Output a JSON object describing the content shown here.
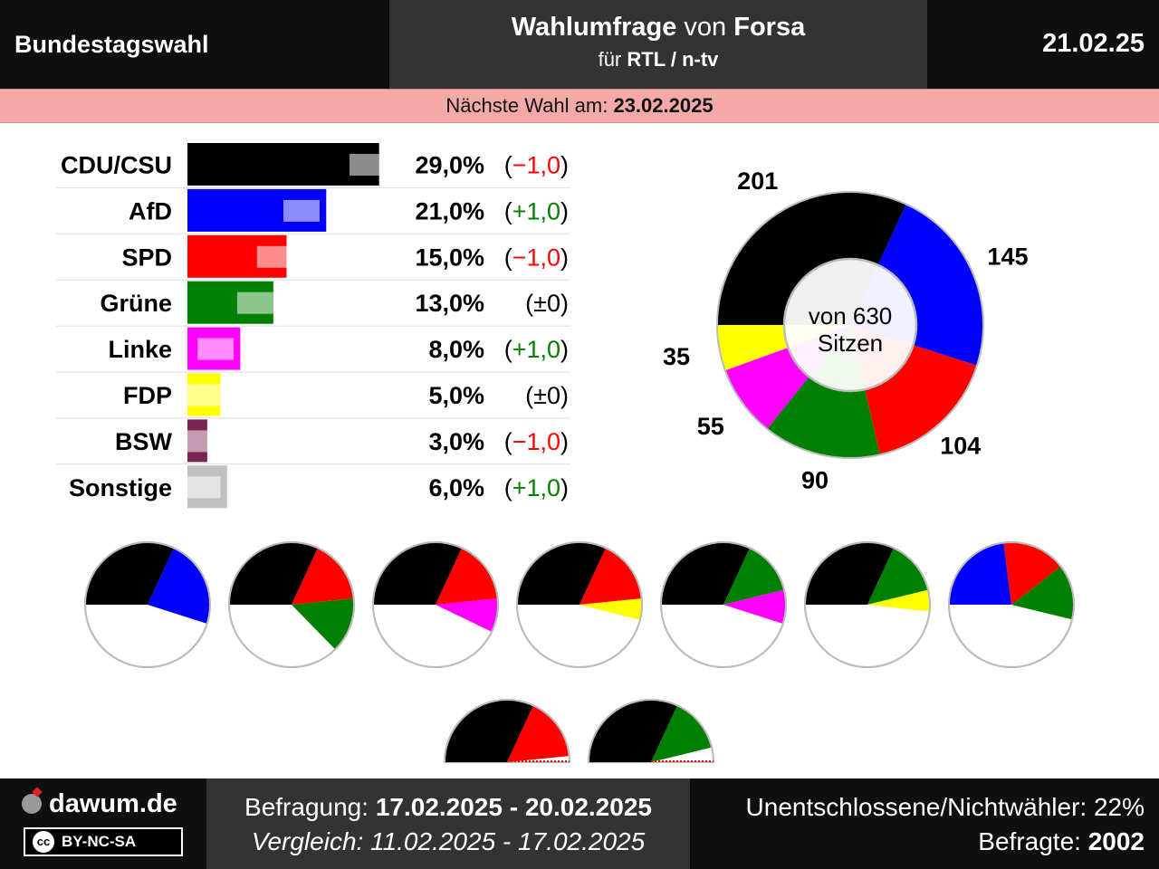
{
  "header": {
    "left": "Bundestagswahl",
    "title_main": "Wahlumfrage",
    "title_mid": " von ",
    "title_org": "Forsa",
    "sub_pre": "für ",
    "sub_client": "RTL / n-tv",
    "date": "21.02.25"
  },
  "next_election": {
    "label": "Nächste Wahl am: ",
    "date": "23.02.2025"
  },
  "chart_data": {
    "type": "bar",
    "categories": [
      "CDU/CSU",
      "AfD",
      "SPD",
      "Grüne",
      "Linke",
      "FDP",
      "BSW",
      "Sonstige"
    ],
    "values": [
      29.0,
      21.0,
      15.0,
      13.0,
      8.0,
      5.0,
      3.0,
      6.0
    ],
    "previous_values": [
      30.0,
      20.0,
      16.0,
      13.0,
      7.0,
      5.0,
      4.0,
      5.0
    ],
    "value_labels": [
      "29,0%",
      "21,0%",
      "15,0%",
      "13,0%",
      "8,0%",
      "5,0%",
      "3,0%",
      "6,0%"
    ],
    "change_labels": [
      "−1,0",
      "+1,0",
      "−1,0",
      "±0",
      "+1,0",
      "±0",
      "−1,0",
      "+1,0"
    ],
    "colors": [
      "#000000",
      "#0000ff",
      "#ff0000",
      "#008000",
      "#ff00ff",
      "#ffff00",
      "#7b2450",
      "#c0c0c0"
    ],
    "change_colors": {
      "down": "#ff0000",
      "up": "#008000",
      "zero": "#000000"
    },
    "seats": {
      "type": "pie",
      "parties": [
        "CDU/CSU",
        "AfD",
        "SPD",
        "Grüne",
        "Linke",
        "FDP"
      ],
      "values": [
        201,
        145,
        104,
        90,
        55,
        35
      ],
      "colors": [
        "#000000",
        "#0000ff",
        "#ff0000",
        "#008000",
        "#ff00ff",
        "#ffff00"
      ],
      "center_line1": "von 630",
      "center_line2": "Sitzen"
    },
    "coalitions": [
      {
        "parties": [
          0,
          1
        ]
      },
      {
        "parties": [
          0,
          2,
          3
        ]
      },
      {
        "parties": [
          0,
          2,
          4
        ]
      },
      {
        "parties": [
          0,
          2,
          5
        ]
      },
      {
        "parties": [
          0,
          3,
          4
        ]
      },
      {
        "parties": [
          0,
          3,
          5
        ]
      },
      {
        "parties": [
          1,
          2,
          3
        ]
      },
      {
        "parties": [
          0,
          2
        ]
      },
      {
        "parties": [
          0,
          3
        ]
      }
    ]
  },
  "footer": {
    "logo": "dawum.de",
    "license": "BY-NC-SA",
    "license_icon": "cc",
    "survey_label": "Befragung: ",
    "survey_dates": "17.02.2025 - 20.02.2025",
    "compare_label": "Vergleich: ",
    "compare_dates": "11.02.2025 - 17.02.2025",
    "undecided": "Unentschlossene/Nichtwähler: 22%",
    "respondents_label": "Befragte: ",
    "respondents": "2002"
  }
}
